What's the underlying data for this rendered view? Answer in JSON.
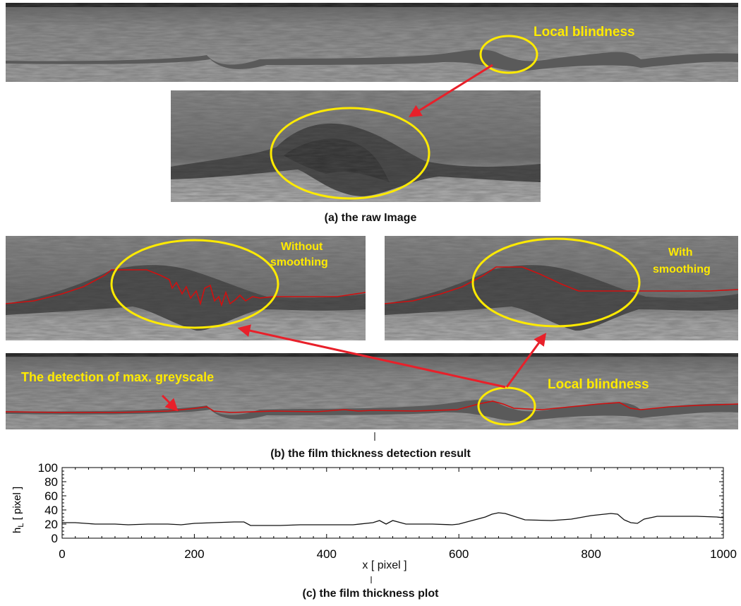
{
  "captions": {
    "a": "(a) the raw Image",
    "b": "(b) the film thickness detection result",
    "c": "(c) the film thickness plot"
  },
  "annotations": {
    "local_blindness_top": "Local blindness",
    "without_smoothing": [
      "Without",
      "smoothing"
    ],
    "with_smoothing": [
      "With",
      "smoothing"
    ],
    "detection_label": "The detection of max. greyscale",
    "local_blindness_bottom": "Local blindness"
  },
  "colors": {
    "annotation": "#ffea00",
    "ellipse": "#ffea00",
    "arrow": "#e8202a",
    "trace": "#d01010"
  },
  "chart_data": {
    "type": "line",
    "title": "",
    "xlabel": "x [ pixel ]",
    "ylabel": "h_L [ pixel ]",
    "ylabel_parts": {
      "main": "h",
      "sub": "L",
      "rest": " [ pixel ]"
    },
    "xlim": [
      0,
      1000
    ],
    "ylim": [
      0,
      100
    ],
    "xticks": [
      0,
      200,
      400,
      600,
      800,
      1000
    ],
    "yticks": [
      0,
      20,
      40,
      60,
      80,
      100
    ],
    "x": [
      0,
      20,
      50,
      80,
      100,
      130,
      160,
      180,
      200,
      230,
      260,
      275,
      285,
      300,
      330,
      360,
      400,
      440,
      470,
      480,
      490,
      500,
      520,
      560,
      590,
      600,
      620,
      640,
      650,
      660,
      670,
      680,
      700,
      740,
      770,
      800,
      830,
      840,
      850,
      860,
      870,
      880,
      900,
      930,
      960,
      990,
      1000
    ],
    "y": [
      22,
      22,
      20,
      20,
      19,
      20,
      20,
      19,
      21,
      22,
      23,
      23,
      18,
      18,
      18,
      19,
      19,
      19,
      22,
      25,
      20,
      25,
      20,
      20,
      19,
      20,
      25,
      30,
      34,
      36,
      35,
      32,
      26,
      25,
      27,
      32,
      35,
      34,
      26,
      22,
      21,
      27,
      31,
      31,
      31,
      30,
      29
    ]
  }
}
